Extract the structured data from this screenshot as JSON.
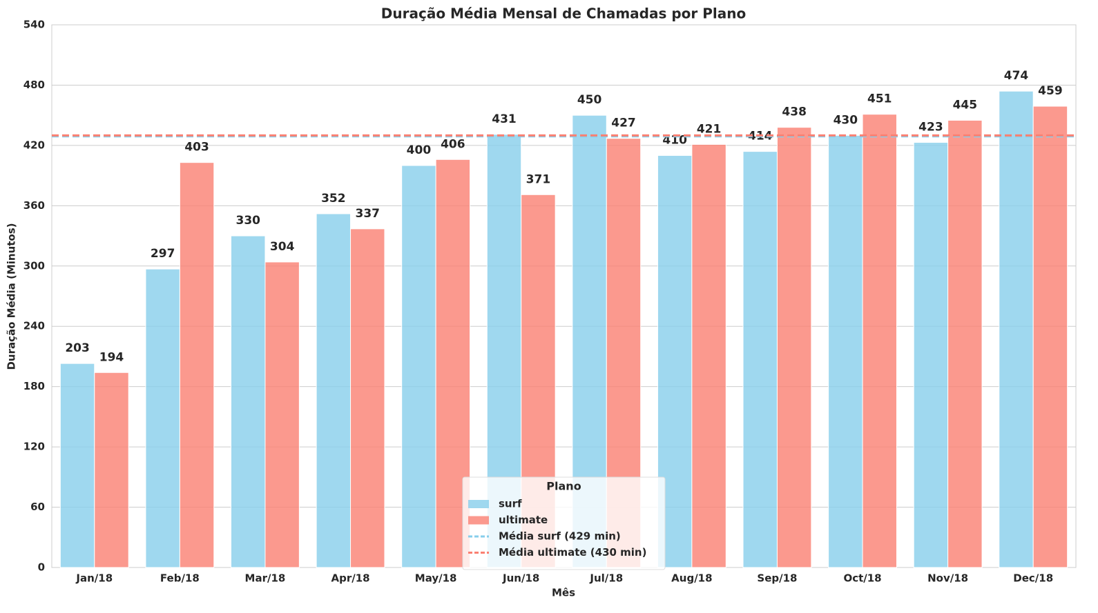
{
  "chart_data": {
    "type": "bar",
    "title": "Duração Média Mensal de Chamadas por Plano",
    "x_label": "Mês",
    "y_label": "Duração Média (Minutos)",
    "categories": [
      "Jan/18",
      "Feb/18",
      "Mar/18",
      "Apr/18",
      "May/18",
      "Jun/18",
      "Jul/18",
      "Aug/18",
      "Sep/18",
      "Oct/18",
      "Nov/18",
      "Dec/18"
    ],
    "series": [
      {
        "name": "surf",
        "color": "#87ceeb",
        "values": [
          203,
          297,
          330,
          352,
          400,
          431,
          450,
          410,
          414,
          430,
          423,
          474
        ]
      },
      {
        "name": "ultimate",
        "color": "#fa8072",
        "values": [
          194,
          403,
          304,
          337,
          406,
          371,
          427,
          421,
          438,
          451,
          445,
          459
        ]
      }
    ],
    "reference_lines": [
      {
        "name": "Média surf (429 min)",
        "value": 429,
        "color": "#87ceeb"
      },
      {
        "name": "Média ultimate (430 min)",
        "value": 430,
        "color": "#fa8072"
      }
    ],
    "legend_title": "Plano",
    "legend_position": "lower center",
    "ylim": [
      0,
      540
    ],
    "yticks": [
      0,
      60,
      120,
      180,
      240,
      300,
      360,
      420,
      480,
      540
    ],
    "grid": true
  }
}
